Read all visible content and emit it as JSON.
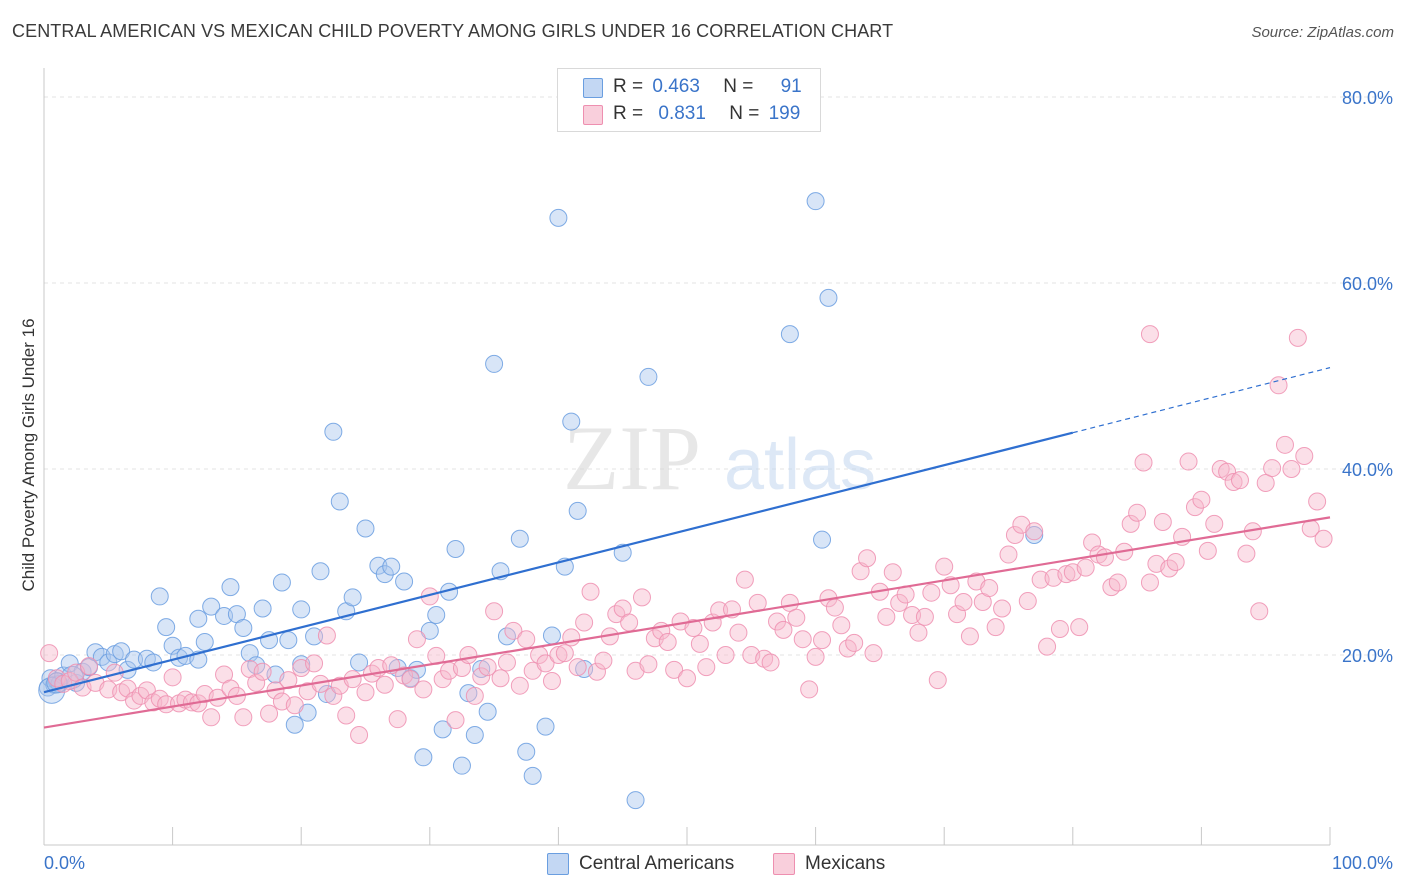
{
  "title": "CENTRAL AMERICAN VS MEXICAN CHILD POVERTY AMONG GIRLS UNDER 16 CORRELATION CHART",
  "source": "Source: ZipAtlas.com",
  "watermark": {
    "zip": "ZIP",
    "atlas": "atlas"
  },
  "legend": {
    "rows": [
      {
        "r_label": "R =",
        "r_value": "0.463",
        "n_label": "N =",
        "n_value": "91",
        "color": "#a8c6ee"
      },
      {
        "r_label": "R =",
        "r_value": "0.831",
        "n_label": "N =",
        "n_value": "199",
        "color": "#f6b8cc"
      }
    ]
  },
  "bottom_legend": [
    {
      "label": "Central Americans",
      "color": "#a8c6ee"
    },
    {
      "label": "Mexicans",
      "color": "#f6b8cc"
    }
  ],
  "chart_data": {
    "type": "scatter",
    "title": "CENTRAL AMERICAN VS MEXICAN CHILD POVERTY AMONG GIRLS UNDER 16 CORRELATION CHART",
    "xlabel": "",
    "ylabel": "Child Poverty Among Girls Under 16",
    "xlim": [
      0,
      100
    ],
    "ylim": [
      0,
      85
    ],
    "x_tick_labels": [
      "0.0%",
      "100.0%"
    ],
    "y_ticks": [
      20,
      40,
      60,
      80
    ],
    "y_tick_labels": [
      "20.0%",
      "40.0%",
      "60.0%",
      "80.0%"
    ],
    "grid": true,
    "legend_position": "top-center",
    "series": [
      {
        "name": "Central Americans",
        "color": "#6a9ee0",
        "fill": "#a8c6ee",
        "trend": {
          "x": [
            0,
            80
          ],
          "y": [
            16.0,
            43.9
          ],
          "dashed_to": [
            100,
            50.9
          ]
        },
        "points": [
          [
            0.3,
            16.5
          ],
          [
            0.5,
            17.5
          ],
          [
            0.8,
            16.8
          ],
          [
            1.0,
            17.2
          ],
          [
            1.2,
            16.9
          ],
          [
            1.5,
            17.8
          ],
          [
            2.0,
            19.1
          ],
          [
            2.5,
            17.0
          ],
          [
            3.0,
            18.2
          ],
          [
            3.5,
            18.7
          ],
          [
            4.0,
            20.3
          ],
          [
            4.5,
            19.8
          ],
          [
            5.0,
            19.2
          ],
          [
            5.5,
            20.1
          ],
          [
            6.0,
            20.4
          ],
          [
            6.5,
            18.4
          ],
          [
            7.0,
            19.5
          ],
          [
            8.0,
            19.6
          ],
          [
            9.0,
            26.3
          ],
          [
            9.5,
            23.0
          ],
          [
            10.0,
            21.0
          ],
          [
            10.5,
            19.7
          ],
          [
            11.0,
            19.9
          ],
          [
            12.0,
            23.9
          ],
          [
            12.5,
            21.4
          ],
          [
            13.0,
            25.2
          ],
          [
            14.0,
            24.2
          ],
          [
            14.5,
            27.3
          ],
          [
            15.0,
            24.4
          ],
          [
            15.5,
            22.9
          ],
          [
            16.0,
            20.2
          ],
          [
            16.5,
            18.9
          ],
          [
            17.0,
            25.0
          ],
          [
            17.5,
            21.6
          ],
          [
            18.0,
            17.9
          ],
          [
            18.5,
            27.8
          ],
          [
            19.0,
            21.6
          ],
          [
            19.5,
            12.5
          ],
          [
            20.0,
            24.9
          ],
          [
            20.5,
            13.8
          ],
          [
            21.0,
            22.0
          ],
          [
            21.5,
            29.0
          ],
          [
            22.0,
            15.8
          ],
          [
            22.5,
            44.0
          ],
          [
            23.0,
            36.5
          ],
          [
            23.5,
            24.7
          ],
          [
            24.0,
            26.2
          ],
          [
            24.5,
            19.2
          ],
          [
            25.0,
            33.6
          ],
          [
            26.0,
            29.6
          ],
          [
            26.5,
            28.7
          ],
          [
            27.0,
            29.5
          ],
          [
            27.5,
            18.6
          ],
          [
            28.0,
            27.9
          ],
          [
            28.5,
            17.5
          ],
          [
            29.0,
            18.4
          ],
          [
            29.5,
            9.0
          ],
          [
            30.0,
            22.6
          ],
          [
            30.5,
            24.3
          ],
          [
            31.0,
            12.0
          ],
          [
            31.5,
            26.8
          ],
          [
            32.0,
            31.4
          ],
          [
            32.5,
            8.1
          ],
          [
            33.0,
            15.9
          ],
          [
            33.5,
            11.4
          ],
          [
            34.0,
            18.5
          ],
          [
            34.5,
            13.9
          ],
          [
            35.0,
            51.3
          ],
          [
            35.5,
            29.0
          ],
          [
            36.0,
            22.0
          ],
          [
            37.0,
            32.5
          ],
          [
            37.5,
            9.6
          ],
          [
            38.0,
            7.0
          ],
          [
            39.0,
            12.3
          ],
          [
            39.5,
            22.1
          ],
          [
            40.0,
            67.0
          ],
          [
            40.5,
            29.5
          ],
          [
            41.0,
            45.1
          ],
          [
            41.5,
            35.5
          ],
          [
            42.0,
            18.5
          ],
          [
            45.0,
            31.0
          ],
          [
            46.0,
            4.4
          ],
          [
            47.0,
            49.9
          ],
          [
            58.0,
            54.5
          ],
          [
            60.0,
            68.8
          ],
          [
            60.5,
            32.4
          ],
          [
            61.0,
            58.4
          ],
          [
            77.0,
            32.9
          ],
          [
            12.0,
            19.5
          ],
          [
            20.0,
            19.0
          ],
          [
            8.5,
            19.2
          ]
        ]
      },
      {
        "name": "Mexicans",
        "color": "#ee8fb0",
        "fill": "#f6b8cc",
        "trend": {
          "x": [
            0,
            100
          ],
          "y": [
            12.2,
            34.8
          ]
        },
        "points": [
          [
            0.4,
            20.2
          ],
          [
            1.0,
            17.5
          ],
          [
            1.5,
            16.9
          ],
          [
            2.0,
            17.2
          ],
          [
            2.5,
            18.1
          ],
          [
            3.0,
            16.5
          ],
          [
            3.5,
            18.8
          ],
          [
            4.0,
            17.0
          ],
          [
            5.0,
            16.3
          ],
          [
            5.5,
            18.1
          ],
          [
            6.0,
            16.0
          ],
          [
            6.5,
            16.4
          ],
          [
            7.0,
            15.1
          ],
          [
            7.5,
            15.6
          ],
          [
            8.0,
            16.2
          ],
          [
            8.5,
            14.9
          ],
          [
            9.0,
            15.3
          ],
          [
            9.5,
            14.7
          ],
          [
            10.0,
            17.6
          ],
          [
            10.5,
            14.8
          ],
          [
            11.0,
            15.2
          ],
          [
            11.5,
            14.9
          ],
          [
            12.0,
            14.8
          ],
          [
            12.5,
            15.8
          ],
          [
            13.0,
            13.3
          ],
          [
            13.5,
            15.4
          ],
          [
            14.0,
            17.9
          ],
          [
            14.5,
            16.4
          ],
          [
            15.0,
            15.6
          ],
          [
            15.5,
            13.3
          ],
          [
            16.0,
            18.5
          ],
          [
            16.5,
            17.0
          ],
          [
            17.0,
            18.2
          ],
          [
            17.5,
            13.7
          ],
          [
            18.0,
            16.2
          ],
          [
            18.5,
            15.0
          ],
          [
            19.0,
            17.3
          ],
          [
            19.5,
            14.6
          ],
          [
            20.0,
            18.6
          ],
          [
            20.5,
            16.1
          ],
          [
            21.0,
            19.1
          ],
          [
            21.5,
            16.9
          ],
          [
            22.0,
            22.1
          ],
          [
            22.5,
            15.6
          ],
          [
            23.0,
            16.7
          ],
          [
            23.5,
            13.5
          ],
          [
            24.0,
            17.4
          ],
          [
            24.5,
            11.4
          ],
          [
            25.0,
            16.0
          ],
          [
            25.5,
            18.0
          ],
          [
            26.0,
            18.6
          ],
          [
            26.5,
            16.8
          ],
          [
            27.0,
            18.9
          ],
          [
            27.5,
            13.1
          ],
          [
            28.0,
            17.8
          ],
          [
            28.5,
            17.4
          ],
          [
            29.0,
            21.7
          ],
          [
            29.5,
            16.3
          ],
          [
            30.0,
            26.3
          ],
          [
            30.5,
            19.9
          ],
          [
            31.0,
            17.4
          ],
          [
            31.5,
            18.3
          ],
          [
            32.0,
            13.0
          ],
          [
            32.5,
            18.6
          ],
          [
            33.0,
            20.0
          ],
          [
            33.5,
            15.6
          ],
          [
            34.0,
            17.7
          ],
          [
            34.5,
            18.7
          ],
          [
            35.0,
            24.7
          ],
          [
            35.5,
            17.5
          ],
          [
            36.0,
            19.2
          ],
          [
            36.5,
            22.6
          ],
          [
            37.0,
            16.7
          ],
          [
            37.5,
            21.7
          ],
          [
            38.0,
            18.3
          ],
          [
            38.5,
            20.0
          ],
          [
            39.0,
            19.1
          ],
          [
            39.5,
            17.2
          ],
          [
            40.0,
            20.0
          ],
          [
            40.5,
            20.2
          ],
          [
            41.0,
            21.9
          ],
          [
            41.5,
            18.7
          ],
          [
            42.0,
            23.5
          ],
          [
            42.5,
            26.8
          ],
          [
            43.0,
            18.2
          ],
          [
            43.5,
            19.4
          ],
          [
            44.0,
            22.0
          ],
          [
            44.5,
            24.4
          ],
          [
            45.0,
            25.0
          ],
          [
            45.5,
            23.5
          ],
          [
            46.0,
            18.3
          ],
          [
            46.5,
            26.2
          ],
          [
            47.0,
            19.0
          ],
          [
            47.5,
            21.8
          ],
          [
            48.0,
            22.6
          ],
          [
            48.5,
            21.4
          ],
          [
            49.0,
            18.4
          ],
          [
            49.5,
            23.6
          ],
          [
            50.0,
            17.5
          ],
          [
            50.5,
            22.9
          ],
          [
            51.0,
            21.2
          ],
          [
            51.5,
            18.7
          ],
          [
            52.0,
            23.5
          ],
          [
            52.5,
            24.8
          ],
          [
            53.0,
            20.0
          ],
          [
            53.5,
            24.9
          ],
          [
            54.0,
            22.4
          ],
          [
            54.5,
            28.1
          ],
          [
            55.0,
            20.0
          ],
          [
            55.5,
            25.6
          ],
          [
            56.0,
            19.6
          ],
          [
            56.5,
            19.2
          ],
          [
            57.0,
            23.6
          ],
          [
            57.5,
            22.7
          ],
          [
            58.0,
            25.6
          ],
          [
            58.5,
            24.0
          ],
          [
            59.0,
            21.7
          ],
          [
            59.5,
            16.3
          ],
          [
            60.0,
            19.8
          ],
          [
            60.5,
            21.6
          ],
          [
            61.0,
            26.1
          ],
          [
            61.5,
            25.1
          ],
          [
            62.0,
            23.2
          ],
          [
            62.5,
            20.7
          ],
          [
            63.0,
            21.3
          ],
          [
            63.5,
            29.0
          ],
          [
            64.0,
            30.4
          ],
          [
            64.5,
            20.2
          ],
          [
            65.0,
            26.8
          ],
          [
            65.5,
            24.1
          ],
          [
            66.0,
            28.9
          ],
          [
            66.5,
            25.6
          ],
          [
            67.0,
            26.5
          ],
          [
            67.5,
            24.3
          ],
          [
            68.0,
            22.4
          ],
          [
            68.5,
            24.1
          ],
          [
            69.0,
            26.7
          ],
          [
            69.5,
            17.3
          ],
          [
            70.0,
            29.5
          ],
          [
            70.5,
            27.5
          ],
          [
            71.0,
            24.4
          ],
          [
            71.5,
            25.7
          ],
          [
            72.0,
            22.0
          ],
          [
            72.5,
            27.9
          ],
          [
            73.0,
            25.7
          ],
          [
            73.5,
            27.2
          ],
          [
            74.0,
            23.0
          ],
          [
            74.5,
            25.0
          ],
          [
            75.0,
            30.8
          ],
          [
            75.5,
            32.9
          ],
          [
            76.0,
            34.0
          ],
          [
            76.5,
            25.8
          ],
          [
            77.0,
            33.3
          ],
          [
            77.5,
            28.1
          ],
          [
            78.0,
            20.9
          ],
          [
            78.5,
            28.3
          ],
          [
            79.0,
            22.8
          ],
          [
            79.5,
            28.7
          ],
          [
            80.0,
            28.9
          ],
          [
            80.5,
            23.0
          ],
          [
            81.0,
            29.4
          ],
          [
            81.5,
            32.1
          ],
          [
            82.0,
            30.8
          ],
          [
            82.5,
            30.5
          ],
          [
            83.0,
            27.3
          ],
          [
            83.5,
            27.8
          ],
          [
            84.0,
            31.1
          ],
          [
            84.5,
            34.1
          ],
          [
            85.0,
            35.3
          ],
          [
            85.5,
            40.7
          ],
          [
            86.0,
            27.8
          ],
          [
            86.5,
            29.8
          ],
          [
            87.0,
            34.3
          ],
          [
            87.5,
            29.3
          ],
          [
            88.0,
            30.0
          ],
          [
            88.5,
            32.7
          ],
          [
            89.0,
            40.8
          ],
          [
            89.5,
            35.9
          ],
          [
            90.0,
            36.7
          ],
          [
            90.5,
            31.2
          ],
          [
            91.0,
            34.1
          ],
          [
            91.5,
            40.0
          ],
          [
            92.0,
            39.7
          ],
          [
            92.5,
            38.6
          ],
          [
            93.0,
            38.8
          ],
          [
            93.5,
            30.9
          ],
          [
            94.0,
            33.3
          ],
          [
            94.5,
            24.7
          ],
          [
            95.0,
            38.5
          ],
          [
            95.5,
            40.1
          ],
          [
            96.0,
            49.0
          ],
          [
            96.5,
            42.6
          ],
          [
            97.0,
            40.0
          ],
          [
            97.5,
            54.1
          ],
          [
            98.0,
            41.4
          ],
          [
            98.5,
            33.6
          ],
          [
            99.0,
            36.5
          ],
          [
            99.5,
            32.5
          ],
          [
            86.0,
            54.5
          ]
        ]
      }
    ]
  }
}
